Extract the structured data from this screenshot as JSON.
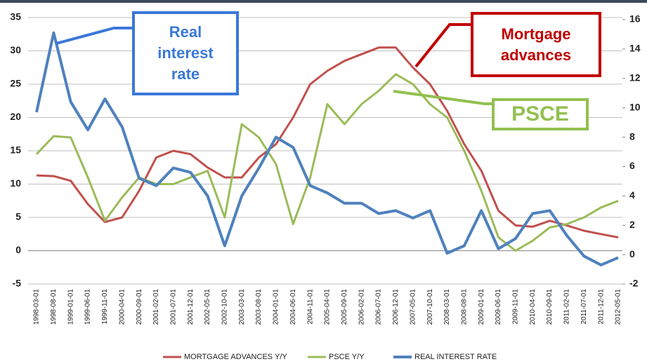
{
  "chart_data": {
    "type": "line",
    "categories": [
      "1998-03-01",
      "1998-08-01",
      "1999-01-01",
      "1999-06-01",
      "1999-11-01",
      "2000-04-01",
      "2000-09-01",
      "2001-02-01",
      "2001-07-01",
      "2001-12-01",
      "2002-05-01",
      "2002-10-01",
      "2003-03-01",
      "2003-08-01",
      "2004-01-01",
      "2004-06-01",
      "2004-11-01",
      "2005-04-01",
      "2005-09-01",
      "2006-02-01",
      "2006-07-01",
      "2006-12-01",
      "2007-05-01",
      "2007-10-01",
      "2008-03-01",
      "2008-08-01",
      "2009-01-01",
      "2009-06-01",
      "2009-11-01",
      "2010-04-01",
      "2010-09-01",
      "2011-02-01",
      "2011-07-01",
      "2011-12-01",
      "2012-05-01"
    ],
    "series": [
      {
        "name": "MORTGAGE ADVANCES Y/Y",
        "color": "#c0504d",
        "values": [
          11.3,
          11.2,
          10.5,
          7,
          4.3,
          5,
          9,
          14,
          15,
          14.5,
          12.5,
          11,
          11,
          14,
          16,
          20,
          25,
          27,
          28.5,
          29.5,
          30.5,
          30.5,
          27.5,
          25,
          21,
          16,
          12,
          6,
          3.8,
          3.6,
          4.5,
          3.8,
          3,
          2.5,
          2
        ]
      },
      {
        "name": "PSCE Y/Y",
        "color": "#9bbb59",
        "values": [
          14.5,
          17.2,
          17,
          11,
          4.5,
          8,
          11,
          10,
          10,
          11,
          12,
          5,
          19,
          17,
          13,
          4,
          11,
          22,
          19,
          22,
          24,
          26.5,
          25,
          22,
          20,
          15,
          9,
          2,
          0,
          1.5,
          3.5,
          4,
          5,
          6.5,
          7.5
        ]
      },
      {
        "name": "REAL INTEREST RATE",
        "color": "#4f81bd",
        "axis": "y2",
        "values": [
          9.7,
          15.1,
          10.4,
          8.5,
          10.6,
          8.7,
          5.2,
          4.7,
          5.9,
          5.6,
          4.0,
          0.6,
          4.0,
          5.9,
          8.0,
          7.3,
          4.7,
          4.2,
          3.5,
          3.5,
          2.8,
          3.0,
          2.5,
          3.0,
          0.1,
          0.6,
          3.0,
          0.4,
          1.1,
          2.8,
          3.0,
          1.3,
          -0.1,
          -0.7,
          -0.2
        ]
      }
    ],
    "ylim": [
      -5,
      35
    ],
    "yticks": [
      -5,
      0,
      5,
      10,
      15,
      20,
      25,
      30,
      35
    ],
    "y2lim": [
      -2,
      16
    ],
    "y2ticks": [
      -2,
      0,
      2,
      4,
      6,
      8,
      10,
      12,
      14,
      16
    ],
    "grid": true,
    "legend": "bottom",
    "annotations": [
      {
        "text": "Real interest rate",
        "color": "#3a78d8"
      },
      {
        "text": "Mortgage advances",
        "color": "#c00000"
      },
      {
        "text": "PSCE",
        "color": "#92c050"
      }
    ]
  }
}
